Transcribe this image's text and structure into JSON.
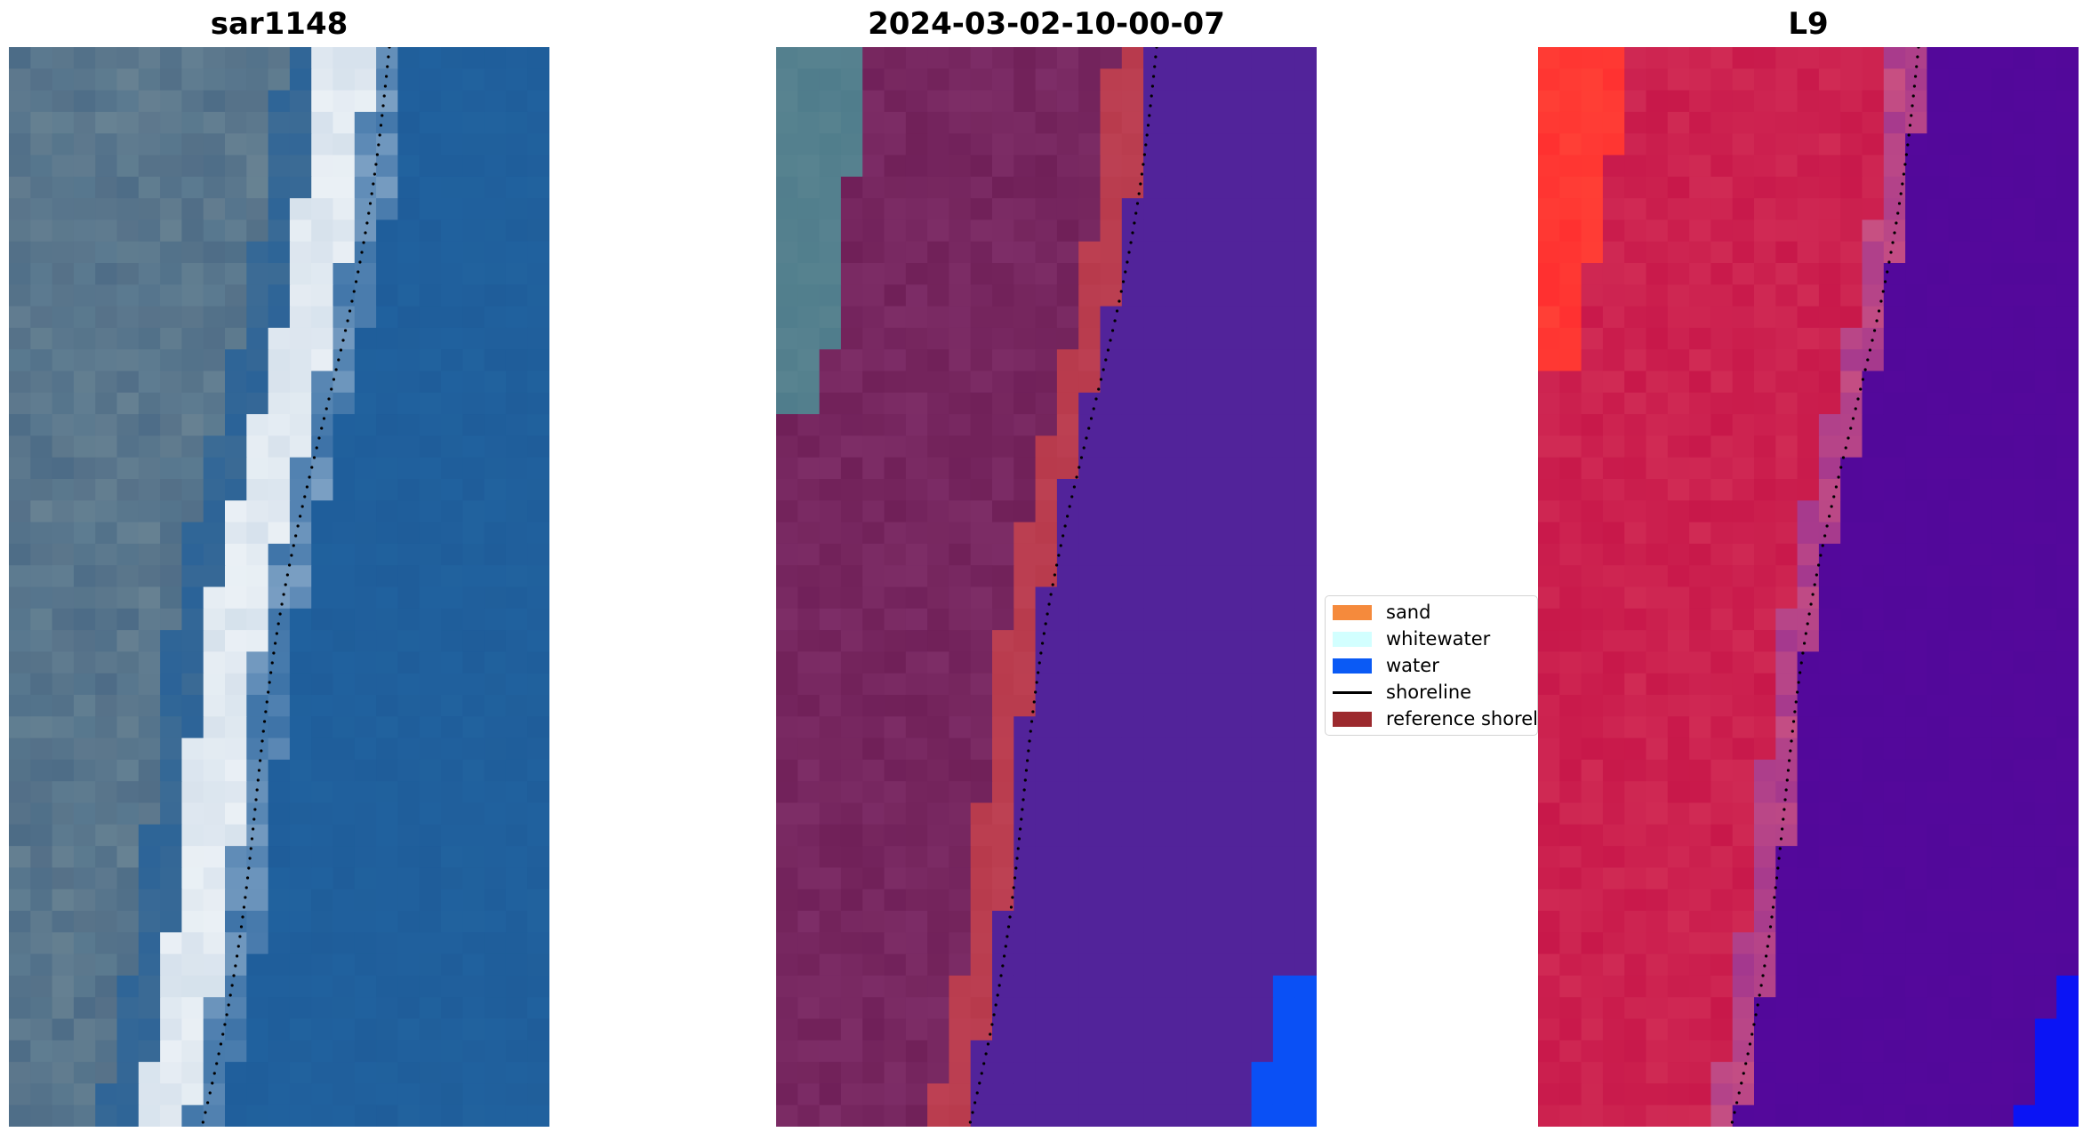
{
  "panels": [
    {
      "title": "sar1148"
    },
    {
      "title": "2024-03-02-10-00-07"
    },
    {
      "title": "L9"
    }
  ],
  "legend": {
    "items": [
      {
        "label": "sand",
        "color": "#f58a3c",
        "kind": "patch"
      },
      {
        "label": "whitewater",
        "color": "#d2ffff",
        "kind": "patch"
      },
      {
        "label": "water",
        "color": "#0a5af5",
        "kind": "patch"
      },
      {
        "label": "shoreline",
        "color": "#000000",
        "kind": "line"
      },
      {
        "label": "reference shoreline",
        "color": "#9c2a2e",
        "kind": "patch"
      }
    ]
  },
  "colors": {
    "rgb_land": "#5a7a90",
    "rgb_water": "#1f5d9a",
    "rgb_whitewater": "#eaf0f5",
    "class_land": "#702058",
    "class_sand_overlay": "#b83a4c",
    "class_water": "#52239a",
    "class_water_patch": "#0a50f5",
    "swir_land": "#c8184a",
    "swir_bright": "#ff3030",
    "swir_water": "#52089a",
    "swir_water_patch": "#0a14f5",
    "shoreline_dots": "#000000"
  }
}
